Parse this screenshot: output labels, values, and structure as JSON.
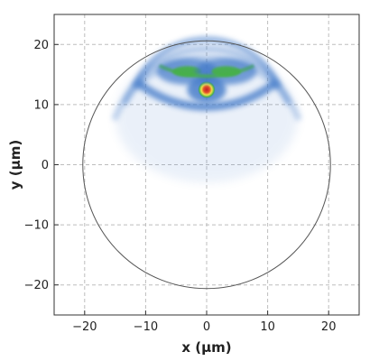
{
  "chart_data": {
    "type": "heatmap",
    "title": "",
    "xlabel": "x (µm)",
    "ylabel": "y (µm)",
    "xlim": [
      -25,
      25
    ],
    "ylim": [
      -25,
      25
    ],
    "xticks": [
      -20,
      -10,
      0,
      10,
      20
    ],
    "yticks": [
      -20,
      -10,
      0,
      10,
      20
    ],
    "grid": true,
    "aperture_circle": {
      "cx": 0,
      "cy": 0,
      "r": 20.3
    },
    "colors": {
      "low": "#ffffff",
      "mid": "#3f78c8",
      "high_green": "#46b04a",
      "peak_yellow": "#f2e24a",
      "peak_red": "#c0202a",
      "circle": "#555555"
    },
    "intensity_features": [
      {
        "kind": "peak",
        "x": 0,
        "y": 12.5,
        "value": 1.0
      },
      {
        "kind": "lobe",
        "x": -3.2,
        "y": 15.5,
        "value": 0.6
      },
      {
        "kind": "lobe",
        "x": 3.2,
        "y": 15.5,
        "value": 0.6
      },
      {
        "kind": "arc",
        "x": 0,
        "y": 17.8,
        "value": 0.5
      },
      {
        "kind": "ring",
        "x": 0,
        "y": 10.5,
        "value": 0.35
      },
      {
        "kind": "ring",
        "x": 0,
        "y": 7.5,
        "value": 0.25
      },
      {
        "kind": "ring",
        "x": 0,
        "y": 4.5,
        "value": 0.18
      }
    ]
  }
}
